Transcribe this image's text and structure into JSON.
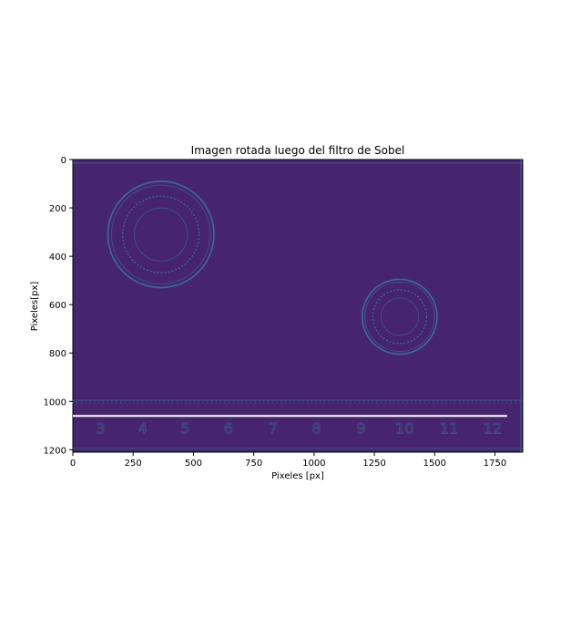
{
  "chart_data": {
    "type": "heatmap",
    "title": "Imagen rotada luego del filtro de Sobel",
    "xlabel": "Pixeles [px]",
    "ylabel": "Pixeles[px]",
    "xlim": [
      0,
      1865
    ],
    "ylim": [
      1210,
      0
    ],
    "xticks": [
      0,
      250,
      500,
      750,
      1000,
      1250,
      1500,
      1750
    ],
    "yticks": [
      0,
      200,
      400,
      600,
      800,
      1000,
      1200
    ],
    "colormap": "viridis",
    "grid": false,
    "colors": {
      "background": "#46256e",
      "edge": "#3a6b98",
      "edge_faint": "#3f4f86",
      "line": "#ffffff"
    },
    "coins": [
      {
        "name": "large-coin",
        "cx": 365,
        "cy": 310,
        "r": 220
      },
      {
        "name": "small-coin",
        "cx": 1355,
        "cy": 650,
        "r": 155
      }
    ],
    "ruler_numbers": [
      "3",
      "4",
      "5",
      "6",
      "7",
      "8",
      "9",
      "10",
      "11",
      "12"
    ],
    "ruler_number_x": [
      115,
      290,
      465,
      645,
      830,
      1010,
      1195,
      1375,
      1560,
      1740
    ],
    "ruler_number_y": 1110,
    "white_line": {
      "x": [
        0,
        1800
      ],
      "y": 1060
    }
  }
}
